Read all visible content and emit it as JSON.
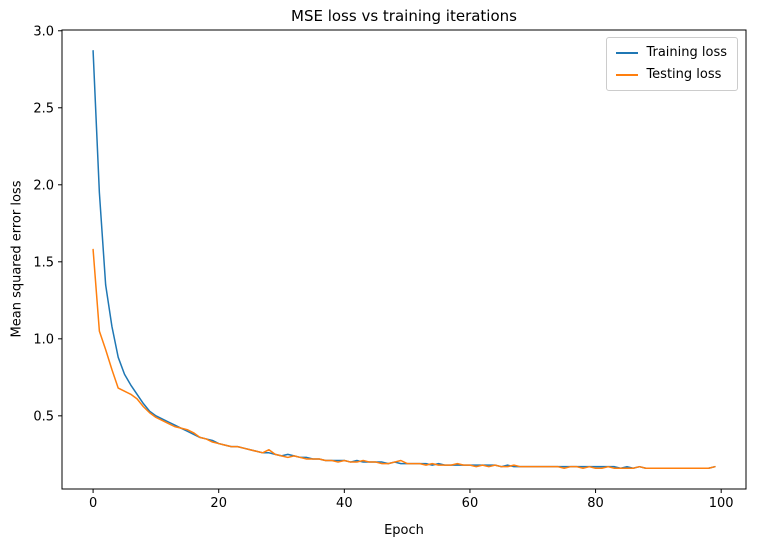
{
  "chart_data": {
    "type": "line",
    "title": "MSE loss vs training iterations",
    "xlabel": "Epoch",
    "ylabel": "Mean squared error loss",
    "grid": false,
    "legend_position": "upper right",
    "xlim": [
      -4.95,
      103.95
    ],
    "ylim": [
      0.025,
      3.005
    ],
    "xticks": [
      {
        "v": 0,
        "label": "0"
      },
      {
        "v": 20,
        "label": "20"
      },
      {
        "v": 40,
        "label": "40"
      },
      {
        "v": 60,
        "label": "60"
      },
      {
        "v": 80,
        "label": "80"
      },
      {
        "v": 100,
        "label": "100"
      }
    ],
    "yticks": [
      {
        "v": 0.5,
        "label": "0.5"
      },
      {
        "v": 1.0,
        "label": "1.0"
      },
      {
        "v": 1.5,
        "label": "1.5"
      },
      {
        "v": 2.0,
        "label": "2.0"
      },
      {
        "v": 2.5,
        "label": "2.5"
      },
      {
        "v": 3.0,
        "label": "3.0"
      }
    ],
    "x": [
      0,
      1,
      2,
      3,
      4,
      5,
      6,
      7,
      8,
      9,
      10,
      11,
      12,
      13,
      14,
      15,
      16,
      17,
      18,
      19,
      20,
      21,
      22,
      23,
      24,
      25,
      26,
      27,
      28,
      29,
      30,
      31,
      32,
      33,
      34,
      35,
      36,
      37,
      38,
      39,
      40,
      41,
      42,
      43,
      44,
      45,
      46,
      47,
      48,
      49,
      50,
      51,
      52,
      53,
      54,
      55,
      56,
      57,
      58,
      59,
      60,
      61,
      62,
      63,
      64,
      65,
      66,
      67,
      68,
      69,
      70,
      71,
      72,
      73,
      74,
      75,
      76,
      77,
      78,
      79,
      80,
      81,
      82,
      83,
      84,
      85,
      86,
      87,
      88,
      89,
      90,
      91,
      92,
      93,
      94,
      95,
      96,
      97,
      98,
      99
    ],
    "series": [
      {
        "name": "Training loss",
        "color": "#1f77b4",
        "values": [
          2.87,
          1.95,
          1.35,
          1.08,
          0.88,
          0.77,
          0.7,
          0.64,
          0.58,
          0.53,
          0.5,
          0.48,
          0.46,
          0.44,
          0.42,
          0.4,
          0.38,
          0.36,
          0.35,
          0.34,
          0.32,
          0.31,
          0.3,
          0.3,
          0.29,
          0.28,
          0.27,
          0.26,
          0.26,
          0.25,
          0.24,
          0.25,
          0.24,
          0.23,
          0.23,
          0.22,
          0.22,
          0.21,
          0.21,
          0.21,
          0.21,
          0.2,
          0.21,
          0.2,
          0.2,
          0.2,
          0.2,
          0.19,
          0.2,
          0.19,
          0.19,
          0.19,
          0.19,
          0.19,
          0.18,
          0.19,
          0.18,
          0.18,
          0.18,
          0.18,
          0.18,
          0.18,
          0.18,
          0.18,
          0.18,
          0.17,
          0.18,
          0.17,
          0.17,
          0.17,
          0.17,
          0.17,
          0.17,
          0.17,
          0.17,
          0.17,
          0.17,
          0.17,
          0.17,
          0.17,
          0.17,
          0.17,
          0.17,
          0.17,
          0.16,
          0.17,
          0.16,
          0.17,
          0.16,
          0.16,
          0.16,
          0.16,
          0.16,
          0.16,
          0.16,
          0.16,
          0.16,
          0.16,
          0.16,
          0.17
        ]
      },
      {
        "name": "Testing loss",
        "color": "#ff7f0e",
        "values": [
          1.58,
          1.05,
          0.93,
          0.8,
          0.68,
          0.66,
          0.64,
          0.61,
          0.56,
          0.52,
          0.49,
          0.47,
          0.45,
          0.43,
          0.42,
          0.41,
          0.39,
          0.36,
          0.35,
          0.33,
          0.32,
          0.31,
          0.3,
          0.3,
          0.29,
          0.28,
          0.27,
          0.26,
          0.28,
          0.25,
          0.24,
          0.23,
          0.24,
          0.23,
          0.22,
          0.22,
          0.22,
          0.21,
          0.21,
          0.2,
          0.21,
          0.2,
          0.2,
          0.21,
          0.2,
          0.2,
          0.19,
          0.19,
          0.2,
          0.21,
          0.19,
          0.19,
          0.19,
          0.18,
          0.19,
          0.18,
          0.18,
          0.18,
          0.19,
          0.18,
          0.18,
          0.17,
          0.18,
          0.17,
          0.18,
          0.17,
          0.17,
          0.18,
          0.17,
          0.17,
          0.17,
          0.17,
          0.17,
          0.17,
          0.17,
          0.16,
          0.17,
          0.17,
          0.16,
          0.17,
          0.16,
          0.16,
          0.17,
          0.16,
          0.16,
          0.16,
          0.16,
          0.17,
          0.16,
          0.16,
          0.16,
          0.16,
          0.16,
          0.16,
          0.16,
          0.16,
          0.16,
          0.16,
          0.16,
          0.17
        ]
      }
    ],
    "axis_color": "#000000",
    "tick_label_color": "#000000"
  }
}
